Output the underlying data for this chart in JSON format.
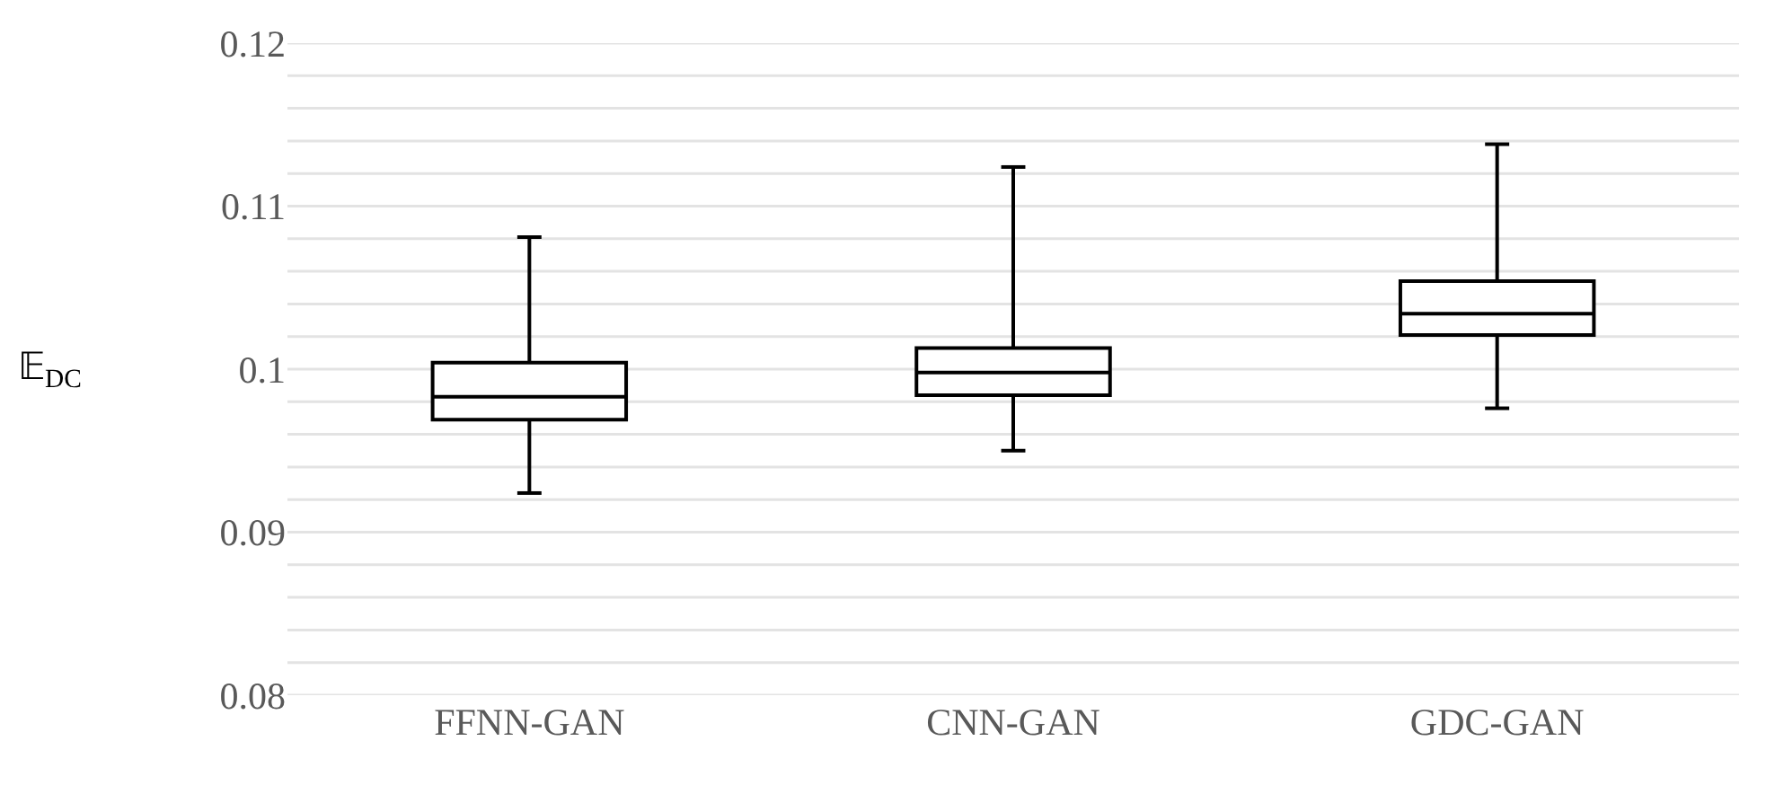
{
  "chart_data": {
    "type": "box",
    "ylabel": "𝔼$_{DC}$",
    "categories": [
      "FFNN-GAN",
      "CNN-GAN",
      "GDC-GAN"
    ],
    "boxes": [
      {
        "low": 0.0924,
        "q1": 0.0969,
        "median": 0.0983,
        "q3": 0.1004,
        "high": 0.1081
      },
      {
        "low": 0.095,
        "q1": 0.0984,
        "median": 0.0998,
        "q3": 0.1013,
        "high": 0.1124
      },
      {
        "low": 0.0976,
        "q1": 0.1021,
        "median": 0.1034,
        "q3": 0.1054,
        "high": 0.1138
      }
    ],
    "color": "#000000",
    "ylim": [
      0.08,
      0.12
    ],
    "yticks": [
      0.08,
      {
        "value": 0.082,
        "label": null
      },
      {
        "value": 0.084,
        "label": null
      },
      {
        "value": 0.086,
        "label": null
      },
      {
        "value": 0.088,
        "label": null
      },
      0.09,
      {
        "value": 0.092,
        "label": null
      },
      {
        "value": 0.094,
        "label": null
      },
      {
        "value": 0.096,
        "label": null
      },
      {
        "value": 0.098,
        "label": null
      },
      0.1,
      {
        "value": 0.102,
        "label": null
      },
      {
        "value": 0.104,
        "label": null
      },
      {
        "value": 0.106,
        "label": null
      },
      {
        "value": 0.108,
        "label": null
      },
      0.11,
      {
        "value": 0.112,
        "label": null
      },
      {
        "value": 0.114,
        "label": null
      },
      {
        "value": 0.116,
        "label": null
      },
      {
        "value": 0.118,
        "label": null
      },
      0.12
    ],
    "grid": "y"
  }
}
